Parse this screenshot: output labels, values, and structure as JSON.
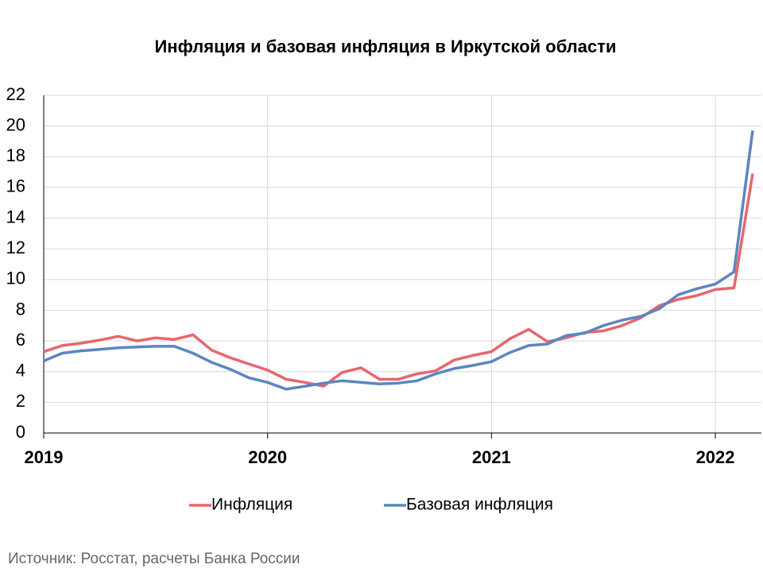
{
  "chart_data": {
    "type": "line",
    "title": "Инфляция и базовая инфляция в Иркутской области",
    "source": "Источник: Росстат, расчеты Банка России",
    "categories": [
      "2019",
      null,
      null,
      null,
      null,
      null,
      null,
      null,
      null,
      null,
      null,
      null,
      "2020",
      null,
      null,
      null,
      null,
      null,
      null,
      null,
      null,
      null,
      null,
      null,
      "2021",
      null,
      null,
      null,
      null,
      null,
      null,
      null,
      null,
      null,
      null,
      null,
      "2022",
      null,
      null
    ],
    "series": [
      {
        "name": "Инфляция",
        "color": "#e8666e",
        "values": [
          5.3,
          5.7,
          5.85,
          6.05,
          6.3,
          6.0,
          6.2,
          6.1,
          6.4,
          5.4,
          4.9,
          4.5,
          4.1,
          3.5,
          3.3,
          3.05,
          3.95,
          4.25,
          3.5,
          3.5,
          3.85,
          4.05,
          4.75,
          5.05,
          5.3,
          6.15,
          6.75,
          5.95,
          6.2,
          6.55,
          6.65,
          7.0,
          7.5,
          8.3,
          8.7,
          8.95,
          9.35,
          9.45,
          16.9
        ]
      },
      {
        "name": "Базовая инфляция",
        "color": "#5b86bf",
        "values": [
          4.7,
          5.2,
          5.35,
          5.45,
          5.55,
          5.6,
          5.65,
          5.65,
          5.2,
          4.6,
          4.15,
          3.6,
          3.3,
          2.85,
          3.05,
          3.25,
          3.4,
          3.3,
          3.2,
          3.25,
          3.4,
          3.85,
          4.2,
          4.4,
          4.65,
          5.25,
          5.7,
          5.8,
          6.35,
          6.5,
          7.0,
          7.35,
          7.6,
          8.1,
          9.0,
          9.4,
          9.7,
          10.5,
          19.7
        ]
      }
    ],
    "ylim": [
      0,
      22
    ],
    "yticks": [
      0,
      2,
      4,
      6,
      8,
      10,
      12,
      14,
      16,
      18,
      20,
      22
    ],
    "grid": true
  }
}
